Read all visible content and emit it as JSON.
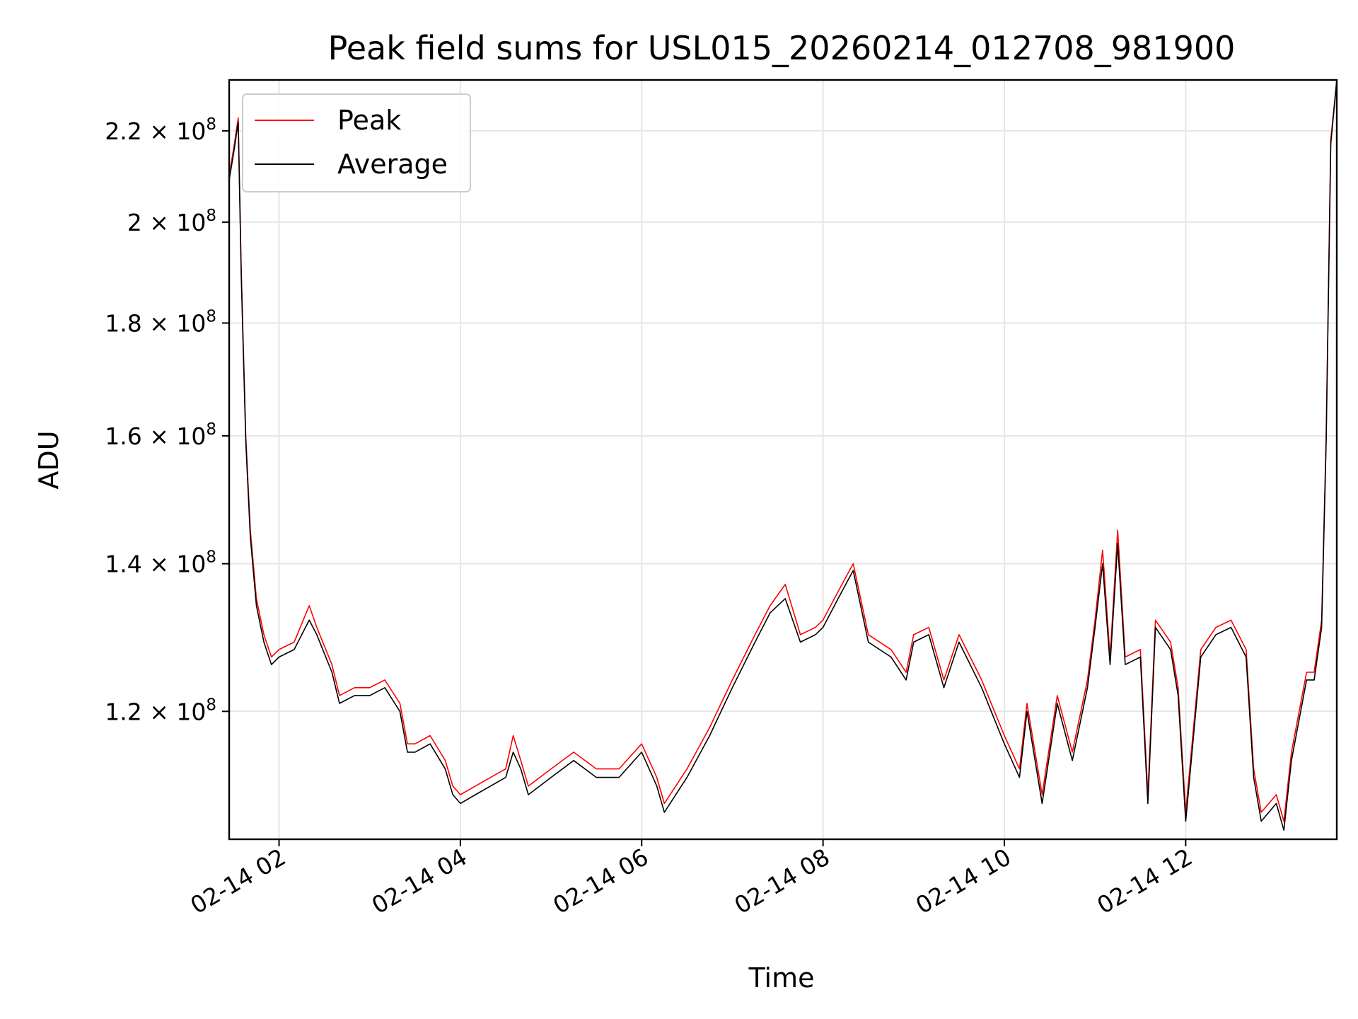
{
  "chart_data": {
    "type": "line",
    "title": "Peak field sums for USL015_20260214_012708_981900",
    "xlabel": "Time",
    "ylabel": "ADU",
    "y_scale": "log",
    "xlim": [
      "2026-02-14 01:27",
      "2026-02-14 13:40"
    ],
    "ylim": [
      105000000,
      232000000
    ],
    "x_ticks": [
      "02-14 02",
      "02-14 04",
      "02-14 06",
      "02-14 08",
      "02-14 10",
      "02-14 12"
    ],
    "y_ticks": [
      {
        "value": 120000000,
        "mantissa": "1.2",
        "exponent": "8"
      },
      {
        "value": 140000000,
        "mantissa": "1.4",
        "exponent": "8"
      },
      {
        "value": 160000000,
        "mantissa": "1.6",
        "exponent": "8"
      },
      {
        "value": 180000000,
        "mantissa": "1.8",
        "exponent": "8"
      },
      {
        "value": 200000000,
        "mantissa": "2",
        "exponent": "8"
      },
      {
        "value": 220000000,
        "mantissa": "2.2",
        "exponent": "8"
      }
    ],
    "grid": true,
    "legend": {
      "position": "top-left"
    },
    "series": [
      {
        "name": "Peak",
        "color": "#ff0000",
        "x": [
          "2026-02-14 01:27",
          "2026-02-14 01:30",
          "2026-02-14 01:33",
          "2026-02-14 01:35",
          "2026-02-14 01:38",
          "2026-02-14 01:41",
          "2026-02-14 01:45",
          "2026-02-14 01:50",
          "2026-02-14 01:55",
          "2026-02-14 02:00",
          "2026-02-14 02:10",
          "2026-02-14 02:20",
          "2026-02-14 02:25",
          "2026-02-14 02:35",
          "2026-02-14 02:40",
          "2026-02-14 02:50",
          "2026-02-14 03:00",
          "2026-02-14 03:10",
          "2026-02-14 03:20",
          "2026-02-14 03:25",
          "2026-02-14 03:30",
          "2026-02-14 03:40",
          "2026-02-14 03:50",
          "2026-02-14 03:55",
          "2026-02-14 04:00",
          "2026-02-14 04:10",
          "2026-02-14 04:20",
          "2026-02-14 04:30",
          "2026-02-14 04:35",
          "2026-02-14 04:40",
          "2026-02-14 04:45",
          "2026-02-14 05:00",
          "2026-02-14 05:15",
          "2026-02-14 05:30",
          "2026-02-14 05:45",
          "2026-02-14 06:00",
          "2026-02-14 06:10",
          "2026-02-14 06:15",
          "2026-02-14 06:30",
          "2026-02-14 06:45",
          "2026-02-14 06:50",
          "2026-02-14 07:00",
          "2026-02-14 07:15",
          "2026-02-14 07:25",
          "2026-02-14 07:35",
          "2026-02-14 07:45",
          "2026-02-14 07:55",
          "2026-02-14 08:00",
          "2026-02-14 08:10",
          "2026-02-14 08:15",
          "2026-02-14 08:20",
          "2026-02-14 08:30",
          "2026-02-14 08:45",
          "2026-02-14 08:55",
          "2026-02-14 09:00",
          "2026-02-14 09:10",
          "2026-02-14 09:20",
          "2026-02-14 09:30",
          "2026-02-14 09:45",
          "2026-02-14 10:00",
          "2026-02-14 10:10",
          "2026-02-14 10:15",
          "2026-02-14 10:25",
          "2026-02-14 10:35",
          "2026-02-14 10:45",
          "2026-02-14 10:55",
          "2026-02-14 11:00",
          "2026-02-14 11:05",
          "2026-02-14 11:10",
          "2026-02-14 11:15",
          "2026-02-14 11:20",
          "2026-02-14 11:30",
          "2026-02-14 11:35",
          "2026-02-14 11:40",
          "2026-02-14 11:50",
          "2026-02-14 11:55",
          "2026-02-14 12:00",
          "2026-02-14 12:10",
          "2026-02-14 12:20",
          "2026-02-14 12:30",
          "2026-02-14 12:40",
          "2026-02-14 12:45",
          "2026-02-14 12:50",
          "2026-02-14 13:00",
          "2026-02-14 13:05",
          "2026-02-14 13:10",
          "2026-02-14 13:20",
          "2026-02-14 13:25",
          "2026-02-14 13:30",
          "2026-02-14 13:33",
          "2026-02-14 13:36",
          "2026-02-14 13:40"
        ],
        "y": [
          210000000,
          216000000,
          223000000,
          190000000,
          160000000,
          145000000,
          135000000,
          130000000,
          127000000,
          128000000,
          129000000,
          134000000,
          131000000,
          126000000,
          122000000,
          123000000,
          123000000,
          124000000,
          121000000,
          116000000,
          116000000,
          117000000,
          114000000,
          111000000,
          110000000,
          111000000,
          112000000,
          113000000,
          117000000,
          114000000,
          111000000,
          113000000,
          115000000,
          113000000,
          113000000,
          116000000,
          112000000,
          109000000,
          113000000,
          118000000,
          120000000,
          124000000,
          130000000,
          134000000,
          137000000,
          130000000,
          131000000,
          132000000,
          136000000,
          138000000,
          140000000,
          130000000,
          128000000,
          125000000,
          130000000,
          131000000,
          124000000,
          130000000,
          124000000,
          117000000,
          113000000,
          121000000,
          110000000,
          122000000,
          115000000,
          124000000,
          132000000,
          142000000,
          127000000,
          145000000,
          127000000,
          128000000,
          110000000,
          132000000,
          129000000,
          123000000,
          108000000,
          128000000,
          131000000,
          132000000,
          128000000,
          113000000,
          108000000,
          110000000,
          107000000,
          115000000,
          125000000,
          125000000,
          132000000,
          160000000,
          218000000,
          232000000
        ]
      },
      {
        "name": "Average",
        "color": "#000000",
        "x": [
          "2026-02-14 01:27",
          "2026-02-14 01:30",
          "2026-02-14 01:33",
          "2026-02-14 01:35",
          "2026-02-14 01:38",
          "2026-02-14 01:41",
          "2026-02-14 01:45",
          "2026-02-14 01:50",
          "2026-02-14 01:55",
          "2026-02-14 02:00",
          "2026-02-14 02:10",
          "2026-02-14 02:20",
          "2026-02-14 02:25",
          "2026-02-14 02:35",
          "2026-02-14 02:40",
          "2026-02-14 02:50",
          "2026-02-14 03:00",
          "2026-02-14 03:10",
          "2026-02-14 03:20",
          "2026-02-14 03:25",
          "2026-02-14 03:30",
          "2026-02-14 03:40",
          "2026-02-14 03:50",
          "2026-02-14 03:55",
          "2026-02-14 04:00",
          "2026-02-14 04:10",
          "2026-02-14 04:20",
          "2026-02-14 04:30",
          "2026-02-14 04:35",
          "2026-02-14 04:40",
          "2026-02-14 04:45",
          "2026-02-14 05:00",
          "2026-02-14 05:15",
          "2026-02-14 05:30",
          "2026-02-14 05:45",
          "2026-02-14 06:00",
          "2026-02-14 06:10",
          "2026-02-14 06:15",
          "2026-02-14 06:30",
          "2026-02-14 06:45",
          "2026-02-14 06:50",
          "2026-02-14 07:00",
          "2026-02-14 07:15",
          "2026-02-14 07:25",
          "2026-02-14 07:35",
          "2026-02-14 07:45",
          "2026-02-14 07:55",
          "2026-02-14 08:00",
          "2026-02-14 08:10",
          "2026-02-14 08:15",
          "2026-02-14 08:20",
          "2026-02-14 08:30",
          "2026-02-14 08:45",
          "2026-02-14 08:55",
          "2026-02-14 09:00",
          "2026-02-14 09:10",
          "2026-02-14 09:20",
          "2026-02-14 09:30",
          "2026-02-14 09:45",
          "2026-02-14 10:00",
          "2026-02-14 10:10",
          "2026-02-14 10:15",
          "2026-02-14 10:25",
          "2026-02-14 10:35",
          "2026-02-14 10:45",
          "2026-02-14 10:55",
          "2026-02-14 11:00",
          "2026-02-14 11:05",
          "2026-02-14 11:10",
          "2026-02-14 11:15",
          "2026-02-14 11:20",
          "2026-02-14 11:30",
          "2026-02-14 11:35",
          "2026-02-14 11:40",
          "2026-02-14 11:50",
          "2026-02-14 11:55",
          "2026-02-14 12:00",
          "2026-02-14 12:10",
          "2026-02-14 12:20",
          "2026-02-14 12:30",
          "2026-02-14 12:40",
          "2026-02-14 12:45",
          "2026-02-14 12:50",
          "2026-02-14 13:00",
          "2026-02-14 13:05",
          "2026-02-14 13:10",
          "2026-02-14 13:20",
          "2026-02-14 13:25",
          "2026-02-14 13:30",
          "2026-02-14 13:33",
          "2026-02-14 13:36",
          "2026-02-14 13:40"
        ],
        "y": [
          209000000,
          215000000,
          222000000,
          189000000,
          159000000,
          144000000,
          134000000,
          129000000,
          126000000,
          127000000,
          128000000,
          132000000,
          130000000,
          125000000,
          121000000,
          122000000,
          122000000,
          123000000,
          120000000,
          115000000,
          115000000,
          116000000,
          113000000,
          110000000,
          109000000,
          110000000,
          111000000,
          112000000,
          115000000,
          113000000,
          110000000,
          112000000,
          114000000,
          112000000,
          112000000,
          115000000,
          111000000,
          108000000,
          112000000,
          117000000,
          119000000,
          123000000,
          129000000,
          133000000,
          135000000,
          129000000,
          130000000,
          131000000,
          135000000,
          137000000,
          139000000,
          129000000,
          127000000,
          124000000,
          129000000,
          130000000,
          123000000,
          129000000,
          123000000,
          116000000,
          112000000,
          120000000,
          109000000,
          121000000,
          114000000,
          123000000,
          131000000,
          140000000,
          126000000,
          143000000,
          126000000,
          127000000,
          109000000,
          131000000,
          128000000,
          122000000,
          107000000,
          127000000,
          130000000,
          131000000,
          127000000,
          112000000,
          107000000,
          109000000,
          106000000,
          114000000,
          124000000,
          124000000,
          131000000,
          159000000,
          217000000,
          232000000
        ]
      }
    ]
  }
}
